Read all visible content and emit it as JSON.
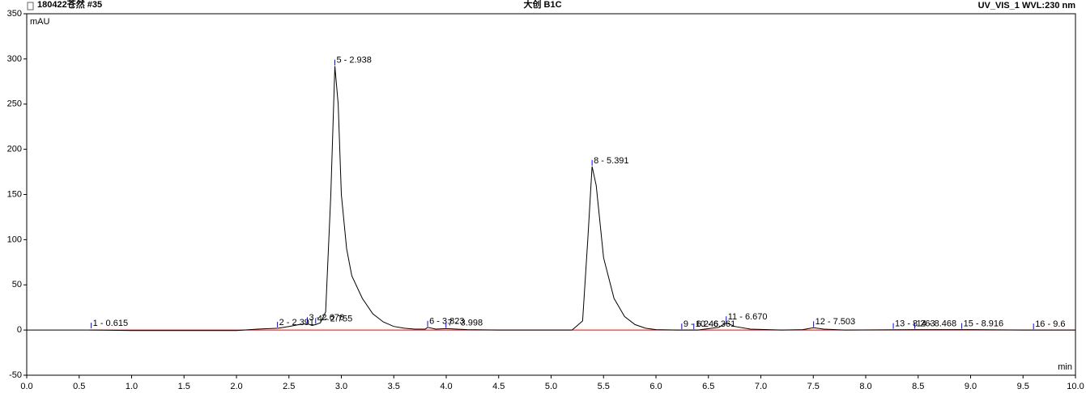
{
  "chart_data": {
    "type": "line",
    "title_left": "180422苍然 #35",
    "title": "大创 B1C",
    "title_right": "UV_VIS_1 WVL:230 nm",
    "ylabel": "mAU",
    "xlabel": "min",
    "x": [
      0.0,
      0.6,
      1.0,
      2.0,
      2.2,
      2.4,
      2.5,
      2.6,
      2.676,
      2.72,
      2.755,
      2.8,
      2.85,
      2.9,
      2.938,
      2.97,
      3.0,
      3.05,
      3.1,
      3.2,
      3.3,
      3.4,
      3.5,
      3.6,
      3.7,
      3.8,
      3.823,
      3.9,
      4.0,
      4.2,
      4.5,
      5.0,
      5.2,
      5.3,
      5.35,
      5.391,
      5.43,
      5.5,
      5.6,
      5.7,
      5.8,
      5.9,
      6.0,
      6.2,
      6.4,
      6.6,
      6.67,
      6.75,
      6.9,
      7.2,
      7.4,
      7.503,
      7.6,
      7.8,
      8.5,
      9.0,
      9.5,
      10.0
    ],
    "series": [
      {
        "name": "UV_VIS_1",
        "color": "#000000",
        "values": [
          0,
          0,
          -0.5,
          -0.5,
          1,
          2,
          4,
          6,
          7,
          5,
          6,
          8,
          20,
          150,
          292,
          250,
          150,
          90,
          60,
          35,
          18,
          9,
          4,
          2,
          1,
          1,
          3,
          1,
          1.5,
          0.5,
          0,
          0,
          0,
          10,
          100,
          181,
          160,
          80,
          35,
          15,
          6,
          2,
          0.5,
          0,
          0,
          3,
          8,
          4,
          1,
          0,
          0.5,
          2.5,
          1,
          0,
          0.5,
          0.5,
          0,
          0
        ]
      }
    ],
    "peaks": [
      {
        "label": "1 - 0.615",
        "time": 0.615,
        "height": 1
      },
      {
        "label": "2 - 2.391",
        "time": 2.391,
        "height": 2
      },
      {
        "label": "3 - 2.676",
        "time": 2.676,
        "height": 7
      },
      {
        "label": "4 - 2.755",
        "time": 2.755,
        "height": 6
      },
      {
        "label": "5 - 2.938",
        "time": 2.938,
        "height": 292
      },
      {
        "label": "6 - 3.823",
        "time": 3.823,
        "height": 3
      },
      {
        "label": "7 - 3.998",
        "time": 3.998,
        "height": 1.5
      },
      {
        "label": "8 - 5.391",
        "time": 5.391,
        "height": 181
      },
      {
        "label": "9 - 6.246",
        "time": 6.246,
        "height": 0
      },
      {
        "label": "10 - 6.361",
        "time": 6.361,
        "height": 0
      },
      {
        "label": "11 - 6.670",
        "time": 6.67,
        "height": 8
      },
      {
        "label": "12 - 7.503",
        "time": 7.503,
        "height": 2.5
      },
      {
        "label": "13 - 8.263",
        "time": 8.263,
        "height": 0.5
      },
      {
        "label": "14 - 8.468",
        "time": 8.468,
        "height": 0.5
      },
      {
        "label": "15 - 8.916",
        "time": 8.916,
        "height": 0.5
      },
      {
        "label": "16 - 9.6",
        "time": 9.6,
        "height": 0
      }
    ],
    "xlim": [
      0.0,
      10.0
    ],
    "xticks": [
      {
        "value": 0,
        "label": "0.0"
      },
      {
        "value": 0.5,
        "label": "0.5"
      },
      {
        "value": 1,
        "label": "1.0"
      },
      {
        "value": 1.5,
        "label": "1.5"
      },
      {
        "value": 2,
        "label": "2.0"
      },
      {
        "value": 2.5,
        "label": "2.5"
      },
      {
        "value": 3,
        "label": "3.0"
      },
      {
        "value": 3.5,
        "label": "3.5"
      },
      {
        "value": 4,
        "label": "4.0"
      },
      {
        "value": 4.5,
        "label": "4.5"
      },
      {
        "value": 5,
        "label": "5.0"
      },
      {
        "value": 5.5,
        "label": "5.5"
      },
      {
        "value": 6,
        "label": "6.0"
      },
      {
        "value": 6.5,
        "label": "6.5"
      },
      {
        "value": 7,
        "label": "7.0"
      },
      {
        "value": 7.5,
        "label": "7.5"
      },
      {
        "value": 8,
        "label": "8.0"
      },
      {
        "value": 8.5,
        "label": "8.5"
      },
      {
        "value": 9,
        "label": "9.0"
      },
      {
        "value": 9.5,
        "label": "9.5"
      },
      {
        "value": 10,
        "label": "10.0"
      }
    ],
    "ylim": [
      -50,
      350
    ],
    "yticks": [
      -50,
      0,
      50,
      100,
      150,
      200,
      250,
      300,
      350
    ],
    "baseline_color": "#ff0000",
    "peak_marker_color": "#0000ff"
  }
}
